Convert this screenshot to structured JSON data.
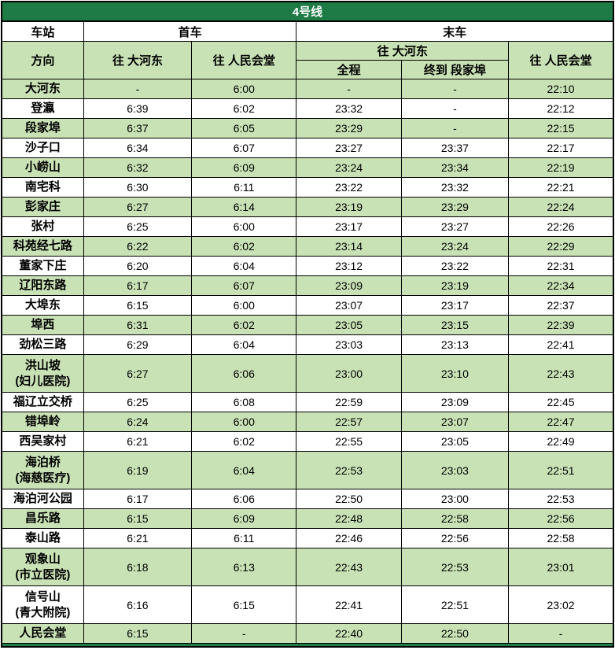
{
  "title": "4号线",
  "header": {
    "station": "车站",
    "first_train": "首车",
    "last_train": "末车",
    "direction": "方向",
    "first_to_dahedong": "往 大河东",
    "first_to_renmin": "往 人民会堂",
    "last_to_dahedong": "往 大河东",
    "full_trip": "全程",
    "terminus_duanjiabu": "终到 段家埠",
    "last_to_renmin": "往 人民会堂"
  },
  "colors": {
    "title_bg": "#1E7B46",
    "title_fg": "#FFFFFF",
    "row_green": "#C9E2B5",
    "row_white": "#FFFFFF",
    "border": "#000000"
  },
  "rows": [
    {
      "station": "大河东",
      "station_line2": "",
      "first_to_dahedong": "-",
      "first_to_renmin": "6:00",
      "last_full_trip": "-",
      "last_to_duanjiabu": "-",
      "last_to_renmin": "22:10"
    },
    {
      "station": "登瀛",
      "station_line2": "",
      "first_to_dahedong": "6:39",
      "first_to_renmin": "6:02",
      "last_full_trip": "23:32",
      "last_to_duanjiabu": "-",
      "last_to_renmin": "22:12"
    },
    {
      "station": "段家埠",
      "station_line2": "",
      "first_to_dahedong": "6:37",
      "first_to_renmin": "6:05",
      "last_full_trip": "23:29",
      "last_to_duanjiabu": "-",
      "last_to_renmin": "22:15"
    },
    {
      "station": "沙子口",
      "station_line2": "",
      "first_to_dahedong": "6:34",
      "first_to_renmin": "6:07",
      "last_full_trip": "23:27",
      "last_to_duanjiabu": "23:37",
      "last_to_renmin": "22:17"
    },
    {
      "station": "小崂山",
      "station_line2": "",
      "first_to_dahedong": "6:32",
      "first_to_renmin": "6:09",
      "last_full_trip": "23:24",
      "last_to_duanjiabu": "23:34",
      "last_to_renmin": "22:19"
    },
    {
      "station": "南宅科",
      "station_line2": "",
      "first_to_dahedong": "6:30",
      "first_to_renmin": "6:11",
      "last_full_trip": "23:22",
      "last_to_duanjiabu": "23:32",
      "last_to_renmin": "22:21"
    },
    {
      "station": "彭家庄",
      "station_line2": "",
      "first_to_dahedong": "6:27",
      "first_to_renmin": "6:14",
      "last_full_trip": "23:19",
      "last_to_duanjiabu": "23:29",
      "last_to_renmin": "22:24"
    },
    {
      "station": "张村",
      "station_line2": "",
      "first_to_dahedong": "6:25",
      "first_to_renmin": "6:00",
      "last_full_trip": "23:17",
      "last_to_duanjiabu": "23:27",
      "last_to_renmin": "22:26"
    },
    {
      "station": "科苑经七路",
      "station_line2": "",
      "first_to_dahedong": "6:22",
      "first_to_renmin": "6:02",
      "last_full_trip": "23:14",
      "last_to_duanjiabu": "23:24",
      "last_to_renmin": "22:29"
    },
    {
      "station": "董家下庄",
      "station_line2": "",
      "first_to_dahedong": "6:20",
      "first_to_renmin": "6:04",
      "last_full_trip": "23:12",
      "last_to_duanjiabu": "23:22",
      "last_to_renmin": "22:31"
    },
    {
      "station": "辽阳东路",
      "station_line2": "",
      "first_to_dahedong": "6:17",
      "first_to_renmin": "6:07",
      "last_full_trip": "23:09",
      "last_to_duanjiabu": "23:19",
      "last_to_renmin": "22:34"
    },
    {
      "station": "大埠东",
      "station_line2": "",
      "first_to_dahedong": "6:15",
      "first_to_renmin": "6:00",
      "last_full_trip": "23:07",
      "last_to_duanjiabu": "23:17",
      "last_to_renmin": "22:37"
    },
    {
      "station": "埠西",
      "station_line2": "",
      "first_to_dahedong": "6:31",
      "first_to_renmin": "6:02",
      "last_full_trip": "23:05",
      "last_to_duanjiabu": "23:15",
      "last_to_renmin": "22:39"
    },
    {
      "station": "劲松三路",
      "station_line2": "",
      "first_to_dahedong": "6:29",
      "first_to_renmin": "6:04",
      "last_full_trip": "23:03",
      "last_to_duanjiabu": "23:13",
      "last_to_renmin": "22:41"
    },
    {
      "station": "洪山坡",
      "station_line2": "(妇儿医院)",
      "first_to_dahedong": "6:27",
      "first_to_renmin": "6:06",
      "last_full_trip": "23:00",
      "last_to_duanjiabu": "23:10",
      "last_to_renmin": "22:43"
    },
    {
      "station": "福辽立交桥",
      "station_line2": "",
      "first_to_dahedong": "6:25",
      "first_to_renmin": "6:08",
      "last_full_trip": "22:59",
      "last_to_duanjiabu": "23:09",
      "last_to_renmin": "22:45"
    },
    {
      "station": "错埠岭",
      "station_line2": "",
      "first_to_dahedong": "6:24",
      "first_to_renmin": "6:00",
      "last_full_trip": "22:57",
      "last_to_duanjiabu": "23:07",
      "last_to_renmin": "22:47"
    },
    {
      "station": "西吴家村",
      "station_line2": "",
      "first_to_dahedong": "6:21",
      "first_to_renmin": "6:02",
      "last_full_trip": "22:55",
      "last_to_duanjiabu": "23:05",
      "last_to_renmin": "22:49"
    },
    {
      "station": "海泊桥",
      "station_line2": "(海慈医疗)",
      "first_to_dahedong": "6:19",
      "first_to_renmin": "6:04",
      "last_full_trip": "22:53",
      "last_to_duanjiabu": "23:03",
      "last_to_renmin": "22:51"
    },
    {
      "station": "海泊河公园",
      "station_line2": "",
      "first_to_dahedong": "6:17",
      "first_to_renmin": "6:06",
      "last_full_trip": "22:50",
      "last_to_duanjiabu": "23:00",
      "last_to_renmin": "22:53"
    },
    {
      "station": "昌乐路",
      "station_line2": "",
      "first_to_dahedong": "6:15",
      "first_to_renmin": "6:09",
      "last_full_trip": "22:48",
      "last_to_duanjiabu": "22:58",
      "last_to_renmin": "22:56"
    },
    {
      "station": "泰山路",
      "station_line2": "",
      "first_to_dahedong": "6:21",
      "first_to_renmin": "6:11",
      "last_full_trip": "22:46",
      "last_to_duanjiabu": "22:56",
      "last_to_renmin": "22:58"
    },
    {
      "station": "观象山",
      "station_line2": "(市立医院)",
      "first_to_dahedong": "6:18",
      "first_to_renmin": "6:13",
      "last_full_trip": "22:43",
      "last_to_duanjiabu": "22:53",
      "last_to_renmin": "23:01"
    },
    {
      "station": "信号山",
      "station_line2": "(青大附院)",
      "first_to_dahedong": "6:16",
      "first_to_renmin": "6:15",
      "last_full_trip": "22:41",
      "last_to_duanjiabu": "22:51",
      "last_to_renmin": "23:02"
    },
    {
      "station": "人民会堂",
      "station_line2": "",
      "first_to_dahedong": "6:15",
      "first_to_renmin": "-",
      "last_full_trip": "22:40",
      "last_to_duanjiabu": "22:50",
      "last_to_renmin": "-"
    }
  ]
}
